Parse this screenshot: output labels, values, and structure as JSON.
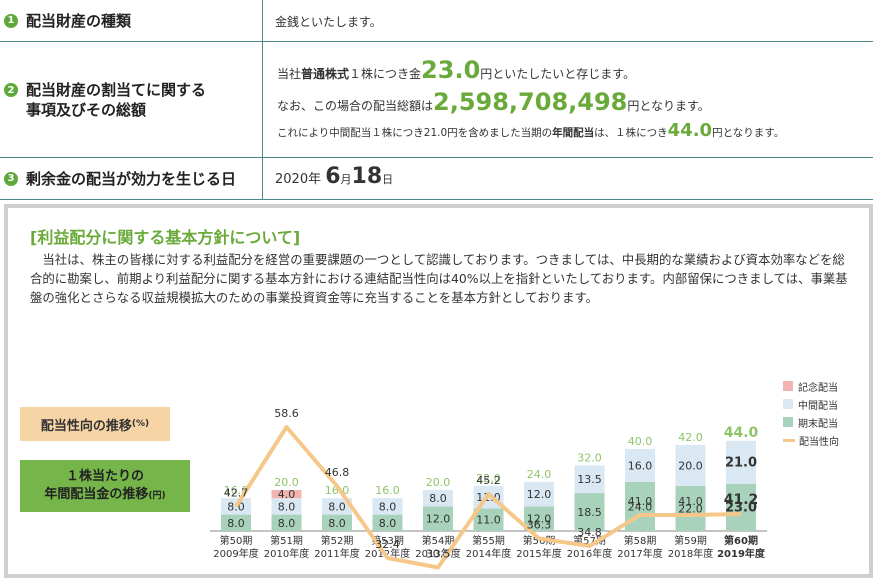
{
  "table": {
    "row1": {
      "num": "1",
      "label": "配当財産の種類",
      "content": "金銭といたします。"
    },
    "row2": {
      "num": "2",
      "label_l1": "配当財産の割当てに関する",
      "label_l2": "事項及びその総額",
      "l1_a": "当社",
      "l1_b": "普通株式",
      "l1_c": "１株につき金",
      "l1_d": "23.0",
      "l1_e": "円といたしたいと存じます。",
      "l2_a": "なお、この場合の配当総額は",
      "l2_b": "2,598,708,498",
      "l2_c": "円となります。",
      "l3_a": "これにより中間配当１株につき21.0円を含めました当期の",
      "l3_b": "年間配当",
      "l3_c": "は、１株につき",
      "l3_d": "44.0",
      "l3_e": "円となります。"
    },
    "row3": {
      "num": "3",
      "label": "剰余金の配当が効力を生じる日",
      "year": "2020年",
      "month": "6",
      "month_u": "月",
      "day": "18",
      "day_u": "日"
    }
  },
  "policy": {
    "title": "[利益配分に関する基本方針について]",
    "text": "　当社は、株主の皆様に対する利益配分を経営の重要課題の一つとして認識しております。つきましては、中長期的な業績および資本効率などを総合的に勘案し、前期より利益配分に関する基本方針における連結配当性向は40%以上を指針といたしております。内部留保につきましては、事業基盤の強化とさらなる収益規模拡大のための事業投資資金等に充当することを基本方針としております。"
  },
  "tags": {
    "payout": "配当性向の推移",
    "payout_unit": "(%)",
    "dps_l1": "１株当たりの",
    "dps_l2": "年間配当金の推移",
    "dps_unit": "(円)"
  },
  "legend": {
    "commemorative": "記念配当",
    "interim": "中間配当",
    "year_end": "期末配当",
    "payout_ratio": "配当性向"
  },
  "colors": {
    "interim": "#d9e8f2",
    "year_end": "#a9d2bc",
    "commemorative": "#f2b4ae",
    "payout_line": "#f5c88a",
    "total_label": "#8fc36a",
    "accent_green": "#6aaa3a"
  },
  "chart_data": {
    "type": "bar",
    "categories": [
      {
        "term": "第50期",
        "year": "2009年度"
      },
      {
        "term": "第51期",
        "year": "2010年度"
      },
      {
        "term": "第52期",
        "year": "2011年度"
      },
      {
        "term": "第53期",
        "year": "2012年度"
      },
      {
        "term": "第54期",
        "year": "2013年度"
      },
      {
        "term": "第55期",
        "year": "2014年度"
      },
      {
        "term": "第56期",
        "year": "2015年度"
      },
      {
        "term": "第57期",
        "year": "2016年度"
      },
      {
        "term": "第58期",
        "year": "2017年度"
      },
      {
        "term": "第59期",
        "year": "2018年度"
      },
      {
        "term": "第60期",
        "year": "2019年度"
      }
    ],
    "series": [
      {
        "name": "期末配当",
        "values": [
          8.0,
          8.0,
          8.0,
          8.0,
          12.0,
          11.0,
          12.0,
          18.5,
          24.0,
          22.0,
          23.0
        ]
      },
      {
        "name": "中間配当",
        "values": [
          8.0,
          8.0,
          8.0,
          8.0,
          8.0,
          11.0,
          12.0,
          13.5,
          16.0,
          20.0,
          21.0
        ]
      },
      {
        "name": "記念配当",
        "values": [
          0,
          4.0,
          0,
          0,
          0,
          0,
          0,
          0,
          0,
          0,
          0
        ]
      }
    ],
    "totals": [
      16.0,
      20.0,
      16.0,
      16.0,
      20.0,
      22.0,
      24.0,
      32.0,
      40.0,
      42.0,
      44.0
    ],
    "payout_ratio": [
      42.7,
      58.6,
      46.8,
      32.4,
      30.5,
      45.2,
      36.3,
      34.8,
      41.0,
      41.0,
      41.2
    ]
  }
}
